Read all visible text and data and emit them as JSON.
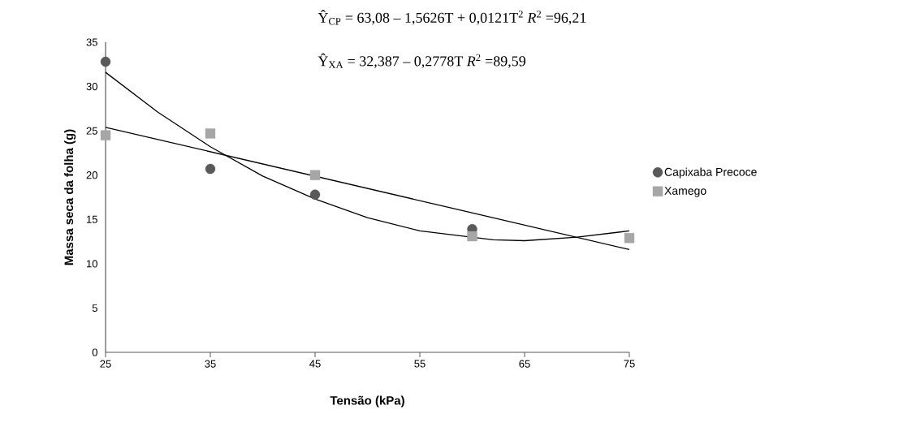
{
  "chart_data": {
    "type": "scatter",
    "xlabel": "Tensão (kPa)",
    "ylabel": "Massa seca da folha (g)",
    "x": [
      25,
      35,
      45,
      60,
      75
    ],
    "series": [
      {
        "name": "Capixaba Precoce",
        "color": "#595959",
        "marker": "circle",
        "values": [
          32.8,
          20.7,
          17.8,
          13.9,
          null
        ]
      },
      {
        "name": "Xamego",
        "color": "#a6a6a6",
        "marker": "square",
        "values": [
          24.5,
          24.7,
          20.0,
          13.1,
          12.9
        ]
      },
      {
        "type": "line",
        "color": "#000000",
        "marker": "none",
        "x": [
          25,
          30,
          35,
          40,
          45,
          50,
          55,
          62,
          65,
          70,
          75
        ],
        "values": [
          31.6,
          27.1,
          23.2,
          19.9,
          17.3,
          15.2,
          13.7,
          12.7,
          12.6,
          13.0,
          13.7
        ]
      },
      {
        "type": "line",
        "color": "#000000",
        "marker": "none",
        "x": [
          25,
          75
        ],
        "values": [
          25.4,
          11.6
        ]
      }
    ],
    "xlim": [
      25,
      75
    ],
    "xticks": [
      25,
      35,
      45,
      55,
      65,
      75
    ],
    "ylim": [
      0,
      35
    ],
    "yticks": [
      0,
      5,
      10,
      15,
      20,
      25,
      30,
      35
    ],
    "grid": false,
    "legend": "right",
    "annotations": [
      "Ŷ$_{CP}$ = 63,08 – 1,5626T + 0,0121T$^{2}$   *R*$^{2}$ =96,21",
      "Ŷ$_{XA}$ = 32,387 – 0,2778T   *R*$^{2}$ =89,59"
    ]
  }
}
